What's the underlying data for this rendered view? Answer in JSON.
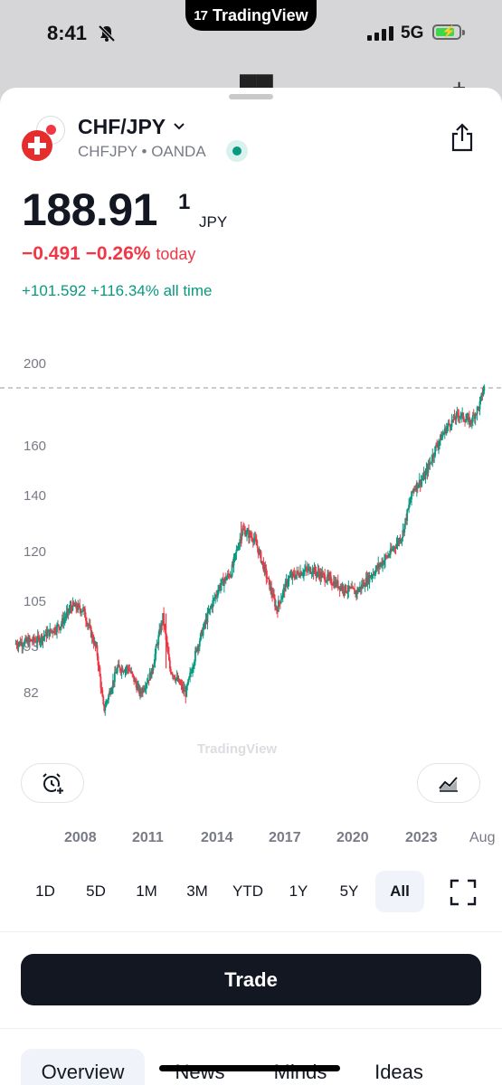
{
  "status_bar": {
    "time": "8:41",
    "island_label": "TradingView",
    "network": "5G"
  },
  "header": {
    "symbol": "CHF/JPY",
    "subtitle": "CHFJPY • OANDA"
  },
  "quote": {
    "price": "188.91",
    "price_superscript": "1",
    "currency": "JPY",
    "today_change": "−0.491 −0.26%",
    "today_label": "today",
    "all_time_change": "+101.592 +116.34% all time"
  },
  "chart_data": {
    "type": "candlestick",
    "y_tick_labels": [
      "200",
      "160",
      "140",
      "120",
      "105",
      "93",
      "82"
    ],
    "x_tick_labels": [
      "2008",
      "2011",
      "2014",
      "2017",
      "2020",
      "2023",
      "Aug"
    ],
    "last_price": 188.911,
    "colors": {
      "up": "#089981",
      "down": "#f23645"
    },
    "series_approx": [
      {
        "year": 2005.0,
        "value": 94
      },
      {
        "year": 2006.0,
        "value": 95
      },
      {
        "year": 2007.0,
        "value": 99
      },
      {
        "year": 2007.5,
        "value": 104
      },
      {
        "year": 2008.0,
        "value": 103
      },
      {
        "year": 2008.6,
        "value": 92
      },
      {
        "year": 2008.9,
        "value": 78
      },
      {
        "year": 2009.5,
        "value": 88
      },
      {
        "year": 2010.0,
        "value": 88
      },
      {
        "year": 2010.5,
        "value": 82
      },
      {
        "year": 2011.0,
        "value": 87
      },
      {
        "year": 2011.5,
        "value": 101
      },
      {
        "year": 2011.8,
        "value": 88
      },
      {
        "year": 2012.5,
        "value": 82
      },
      {
        "year": 2013.0,
        "value": 93
      },
      {
        "year": 2013.5,
        "value": 102
      },
      {
        "year": 2014.0,
        "value": 110
      },
      {
        "year": 2014.5,
        "value": 114
      },
      {
        "year": 2015.0,
        "value": 128
      },
      {
        "year": 2015.5,
        "value": 125
      },
      {
        "year": 2016.0,
        "value": 114
      },
      {
        "year": 2016.5,
        "value": 103
      },
      {
        "year": 2017.0,
        "value": 112
      },
      {
        "year": 2017.5,
        "value": 114
      },
      {
        "year": 2018.0,
        "value": 115
      },
      {
        "year": 2018.5,
        "value": 113
      },
      {
        "year": 2019.0,
        "value": 111
      },
      {
        "year": 2019.5,
        "value": 109
      },
      {
        "year": 2020.0,
        "value": 108
      },
      {
        "year": 2020.5,
        "value": 112
      },
      {
        "year": 2021.0,
        "value": 116
      },
      {
        "year": 2021.5,
        "value": 120
      },
      {
        "year": 2022.0,
        "value": 126
      },
      {
        "year": 2022.5,
        "value": 143
      },
      {
        "year": 2023.0,
        "value": 148
      },
      {
        "year": 2023.5,
        "value": 160
      },
      {
        "year": 2024.0,
        "value": 170
      },
      {
        "year": 2024.5,
        "value": 176
      },
      {
        "year": 2025.0,
        "value": 172
      },
      {
        "year": 2025.4,
        "value": 180
      },
      {
        "year": 2025.6,
        "value": 189
      }
    ]
  },
  "ranges": [
    "1D",
    "5D",
    "1M",
    "3M",
    "YTD",
    "1Y",
    "5Y",
    "All"
  ],
  "active_range": "All",
  "trade_button": "Trade",
  "tabs": [
    "Overview",
    "News",
    "Minds",
    "Ideas"
  ],
  "active_tab": "Overview"
}
